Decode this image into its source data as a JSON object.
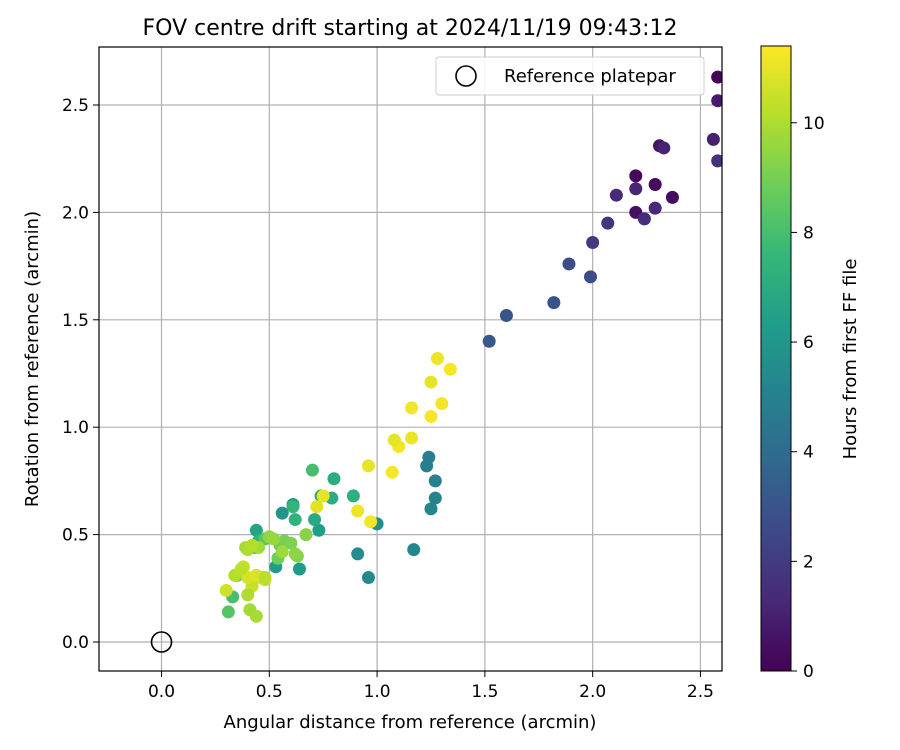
{
  "chart_data": {
    "type": "scatter",
    "title": "FOV centre drift starting at 2024/11/19 09:43:12",
    "xlabel": "Angular distance from reference (arcmin)",
    "ylabel": "Rotation from reference (arcmin)",
    "xlim": [
      -0.29,
      2.6
    ],
    "ylim": [
      -0.135,
      2.77
    ],
    "xticks": [
      "0.0",
      "0.5",
      "1.0",
      "1.5",
      "2.0",
      "2.5"
    ],
    "yticks": [
      "0.0",
      "0.5",
      "1.0",
      "1.5",
      "2.0",
      "2.5"
    ],
    "grid": true,
    "colormap": "viridis",
    "colorbar": {
      "label": "Hours from first FF file",
      "range": [
        0,
        11.4
      ],
      "ticks": [
        "0",
        "2",
        "4",
        "6",
        "8",
        "10"
      ],
      "colors": [
        "#440154",
        "#482878",
        "#3e4989",
        "#31688e",
        "#26828e",
        "#1f9e89",
        "#35b779",
        "#6ece58",
        "#b5de2b",
        "#fde725"
      ]
    },
    "legend": {
      "position": "top-right",
      "label": "Reference platepar"
    },
    "reference": {
      "x": 0.0,
      "y": 0.0
    },
    "series": [
      {
        "x": [
          2.58,
          2.2,
          2.29,
          2.37,
          2.2,
          2.31,
          2.58,
          2.56,
          2.33,
          2.2,
          2.11,
          2.29,
          2.24,
          2.58,
          2.07,
          2.0,
          1.89,
          1.99,
          1.82,
          1.6,
          1.52,
          1.24,
          1.23,
          1.27,
          1.27,
          1.25,
          1.17,
          0.96,
          0.91,
          1.0,
          0.56,
          0.61,
          0.64,
          0.53,
          0.73,
          0.74,
          0.79,
          0.8,
          0.89,
          0.7,
          0.71,
          0.62,
          0.61,
          0.44,
          0.45,
          0.43,
          0.48,
          0.33,
          0.31,
          0.35,
          0.54,
          0.55,
          0.57,
          0.6,
          0.63,
          0.67,
          0.62,
          0.5,
          0.52,
          0.56,
          0.45,
          0.39,
          0.4,
          0.42,
          0.46,
          0.48,
          0.38,
          0.42,
          0.47,
          0.4,
          0.44,
          0.72,
          0.75,
          0.3,
          0.34,
          0.37,
          0.4,
          0.41,
          0.44,
          0.48,
          0.96,
          0.91,
          0.97,
          1.07,
          1.1,
          1.16,
          1.08,
          1.16,
          1.25,
          1.25,
          1.3,
          1.28,
          1.34
        ],
        "y": [
          2.63,
          2.17,
          2.13,
          2.07,
          2.0,
          2.31,
          2.52,
          2.34,
          2.3,
          2.11,
          2.08,
          2.02,
          1.97,
          2.24,
          1.95,
          1.86,
          1.76,
          1.7,
          1.58,
          1.52,
          1.4,
          0.86,
          0.82,
          0.75,
          0.67,
          0.62,
          0.43,
          0.3,
          0.41,
          0.55,
          0.6,
          0.64,
          0.34,
          0.35,
          0.52,
          0.68,
          0.67,
          0.76,
          0.68,
          0.8,
          0.57,
          0.57,
          0.63,
          0.52,
          0.47,
          0.44,
          0.48,
          0.21,
          0.14,
          0.31,
          0.39,
          0.45,
          0.47,
          0.46,
          0.4,
          0.5,
          0.41,
          0.49,
          0.48,
          0.42,
          0.44,
          0.44,
          0.43,
          0.45,
          0.3,
          0.29,
          0.35,
          0.26,
          0.3,
          0.3,
          0.31,
          0.63,
          0.68,
          0.24,
          0.31,
          0.34,
          0.22,
          0.15,
          0.12,
          0.3,
          0.82,
          0.61,
          0.56,
          0.79,
          0.91,
          0.95,
          0.94,
          1.09,
          1.05,
          1.21,
          1.11,
          1.32,
          1.27
        ],
        "c": [
          0.1,
          0.2,
          0.3,
          0.4,
          0.5,
          0.6,
          0.8,
          1.0,
          1.1,
          1.2,
          1.3,
          1.4,
          1.5,
          1.6,
          1.7,
          1.9,
          2.6,
          2.7,
          2.9,
          3.0,
          3.1,
          4.8,
          4.9,
          5.0,
          5.1,
          5.2,
          5.3,
          5.4,
          5.5,
          5.6,
          5.9,
          6.1,
          6.2,
          6.3,
          6.4,
          6.8,
          7.0,
          7.1,
          7.2,
          8.0,
          6.9,
          7.3,
          7.5,
          6.6,
          7.4,
          7.8,
          8.4,
          8.0,
          8.3,
          8.5,
          8.8,
          8.9,
          9.0,
          9.1,
          9.2,
          9.3,
          9.4,
          9.5,
          9.6,
          9.7,
          9.8,
          9.9,
          10.0,
          10.1,
          10.2,
          10.3,
          10.4,
          10.5,
          10.6,
          10.7,
          10.8,
          10.9,
          11.0,
          10.6,
          10.1,
          10.3,
          10.0,
          9.8,
          9.9,
          10.2,
          11.0,
          11.1,
          11.2,
          11.3,
          11.2,
          11.1,
          11.0,
          11.2,
          11.3,
          11.0,
          11.2,
          11.1,
          11.3
        ]
      }
    ]
  }
}
